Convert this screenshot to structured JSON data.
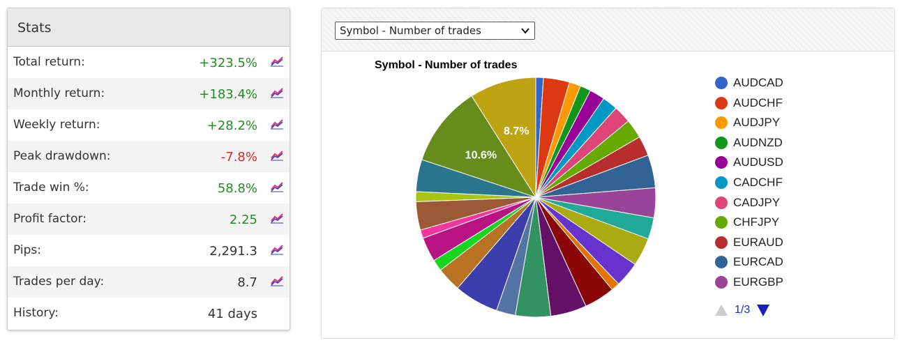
{
  "stats": {
    "title": "Stats",
    "rows": [
      {
        "label": "Total return:",
        "value": "+323.5%",
        "tone": "pos",
        "chart_icon": true
      },
      {
        "label": "Monthly return:",
        "value": "+183.4%",
        "tone": "pos",
        "chart_icon": true
      },
      {
        "label": "Weekly return:",
        "value": "+28.2%",
        "tone": "pos",
        "chart_icon": true
      },
      {
        "label": "Peak drawdown:",
        "value": "-7.8%",
        "tone": "neg",
        "chart_icon": true
      },
      {
        "label": "Trade win %:",
        "value": "58.8%",
        "tone": "pos",
        "chart_icon": true
      },
      {
        "label": "Profit factor:",
        "value": "2.25",
        "tone": "pos",
        "chart_icon": true
      },
      {
        "label": "Pips:",
        "value": "2,291.3",
        "tone": "neu",
        "chart_icon": true
      },
      {
        "label": "Trades per day:",
        "value": "8.7",
        "tone": "neu",
        "chart_icon": true
      },
      {
        "label": "History:",
        "value": "41 days",
        "tone": "neu",
        "chart_icon": false
      }
    ],
    "icon": "line-chart-icon",
    "colors": {
      "positive": "#1f8f1f",
      "negative": "#d12b2b"
    }
  },
  "chart_panel": {
    "selector": {
      "selected": "Symbol - Number of trades"
    },
    "pager": {
      "text": "1/3"
    }
  },
  "chart_data": {
    "type": "pie",
    "title": "Symbol - Number of trades",
    "slice_labels_shown": [
      "10.6%",
      "8.7%"
    ],
    "legend_visible": [
      "AUDCAD",
      "AUDCHF",
      "AUDJPY",
      "AUDNZD",
      "AUDUSD",
      "CADCHF",
      "CADJPY",
      "CHFJPY",
      "EURAUD",
      "EURCAD",
      "EURGBP"
    ],
    "legend_position": "right",
    "slices": [
      {
        "name": "AUDCAD",
        "value": 1.0,
        "color": "#3366cc"
      },
      {
        "name": "AUDCHF",
        "value": 3.4,
        "color": "#dc3912"
      },
      {
        "name": "AUDJPY",
        "value": 1.5,
        "color": "#ff9900"
      },
      {
        "name": "AUDNZD",
        "value": 1.4,
        "color": "#109618"
      },
      {
        "name": "AUDUSD",
        "value": 2.0,
        "color": "#990099"
      },
      {
        "name": "CADCHF",
        "value": 2.0,
        "color": "#0099c6"
      },
      {
        "name": "CADJPY",
        "value": 2.3,
        "color": "#dd4477"
      },
      {
        "name": "CHFJPY",
        "value": 2.5,
        "color": "#66aa00"
      },
      {
        "name": "EURAUD",
        "value": 2.6,
        "color": "#b82e2e"
      },
      {
        "name": "EURCAD",
        "value": 4.3,
        "color": "#316395"
      },
      {
        "name": "EURGBP",
        "value": 3.9,
        "color": "#994499"
      },
      {
        "name": "",
        "value": 2.8,
        "color": "#22aa99"
      },
      {
        "name": "",
        "value": 3.7,
        "color": "#aaaa11"
      },
      {
        "name": "",
        "value": 3.3,
        "color": "#6633cc"
      },
      {
        "name": "",
        "value": 1.1,
        "color": "#e67300"
      },
      {
        "name": "",
        "value": 4.0,
        "color": "#8b0707"
      },
      {
        "name": "",
        "value": 4.7,
        "color": "#651067"
      },
      {
        "name": "",
        "value": 4.6,
        "color": "#329262"
      },
      {
        "name": "",
        "value": 2.5,
        "color": "#5574a6"
      },
      {
        "name": "",
        "value": 5.8,
        "color": "#3b3eac"
      },
      {
        "name": "",
        "value": 3.2,
        "color": "#b77322"
      },
      {
        "name": "",
        "value": 1.5,
        "color": "#16d620"
      },
      {
        "name": "",
        "value": 3.2,
        "color": "#b91383"
      },
      {
        "name": "",
        "value": 1.1,
        "color": "#f4359e"
      },
      {
        "name": "",
        "value": 3.7,
        "color": "#9c5935"
      },
      {
        "name": "",
        "value": 1.3,
        "color": "#a9c413"
      },
      {
        "name": "",
        "value": 4.2,
        "color": "#2a778d"
      },
      {
        "name": "",
        "value": 10.6,
        "color": "#668d1c",
        "label": "10.6%"
      },
      {
        "name": "",
        "value": 8.7,
        "color": "#bea413",
        "label": "8.7%"
      }
    ]
  }
}
